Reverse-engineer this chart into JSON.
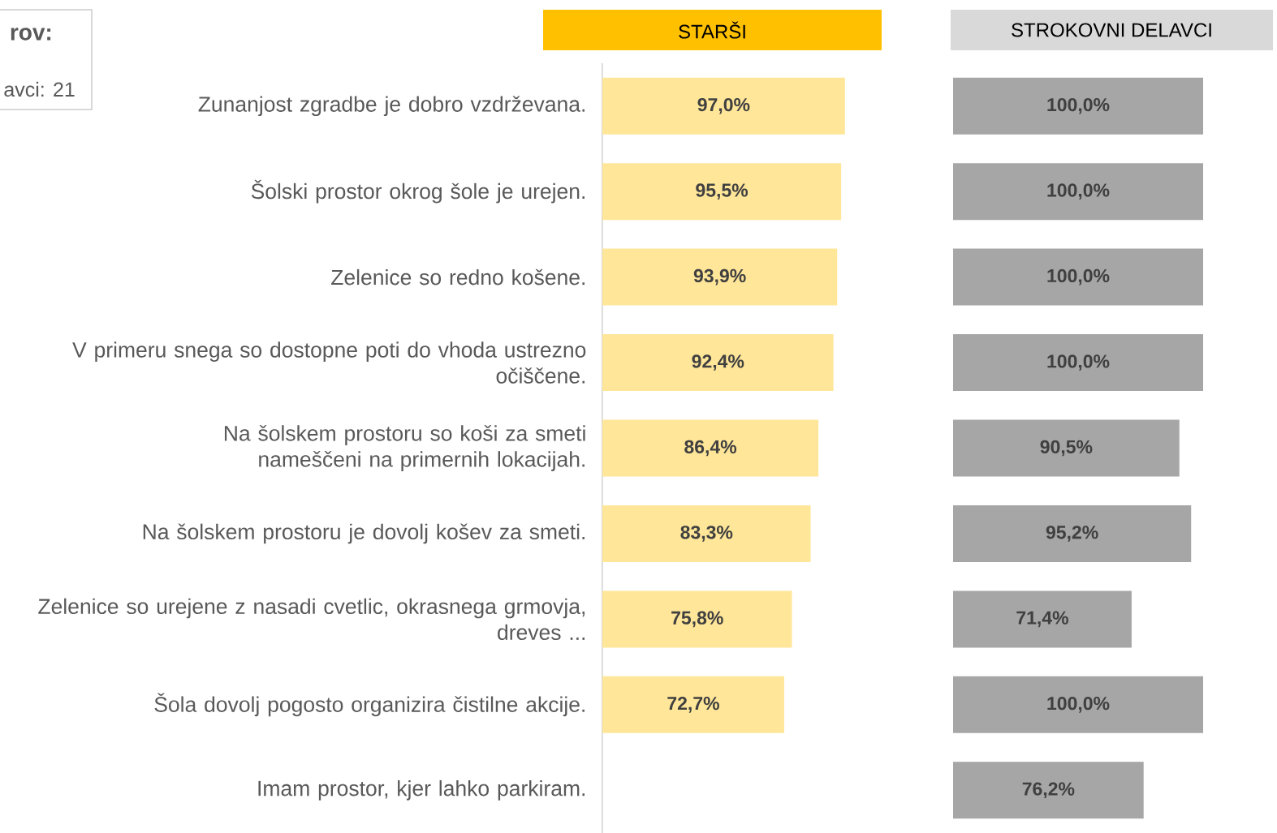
{
  "chart_data": [
    {
      "type": "bar",
      "orientation": "horizontal",
      "title": "STARŠI",
      "categories": [
        "Zunanjost zgradbe je dobro vzdrževana.",
        "Šolski prostor okrog šole je urejen.",
        "Zelenice so redno košene.",
        "V primeru snega so dostopne poti do vhoda ustrezno očiščene.",
        "Na šolskem prostoru so koši za smeti nameščeni na primernih lokacijah.",
        "Na šolskem prostoru je dovolj košev za smeti.",
        "Zelenice so urejene z nasadi cvetlic, okrasnega grmovja, dreves ...",
        "Šola dovolj pogosto organizira čistilne akcije.",
        "Imam prostor, kjer lahko parkiram."
      ],
      "values": [
        97.0,
        95.5,
        93.9,
        92.4,
        86.4,
        83.3,
        75.8,
        72.7,
        null
      ],
      "value_labels": [
        "97,0%",
        "95,5%",
        "93,9%",
        "92,4%",
        "86,4%",
        "83,3%",
        "75,8%",
        "72,7%",
        null
      ],
      "color": "#ffe699",
      "tick_labels": "y",
      "annotations": [
        "rov:",
        "avci: 21"
      ]
    },
    {
      "type": "bar",
      "orientation": "horizontal",
      "title": "STROKOVNI DELAVCI",
      "categories": [
        null,
        null,
        null,
        null,
        null,
        null,
        null,
        null,
        null
      ],
      "values": [
        100.0,
        100.0,
        100.0,
        100.0,
        90.5,
        95.2,
        71.4,
        100.0,
        76.2
      ],
      "value_labels": [
        "100,0%",
        "100,0%",
        "100,0%",
        "100,0%",
        "90,5%",
        "95,2%",
        "71,4%",
        "100,0%",
        "76,2%"
      ],
      "color": "#a6a6a6",
      "tick_labels": false
    }
  ]
}
